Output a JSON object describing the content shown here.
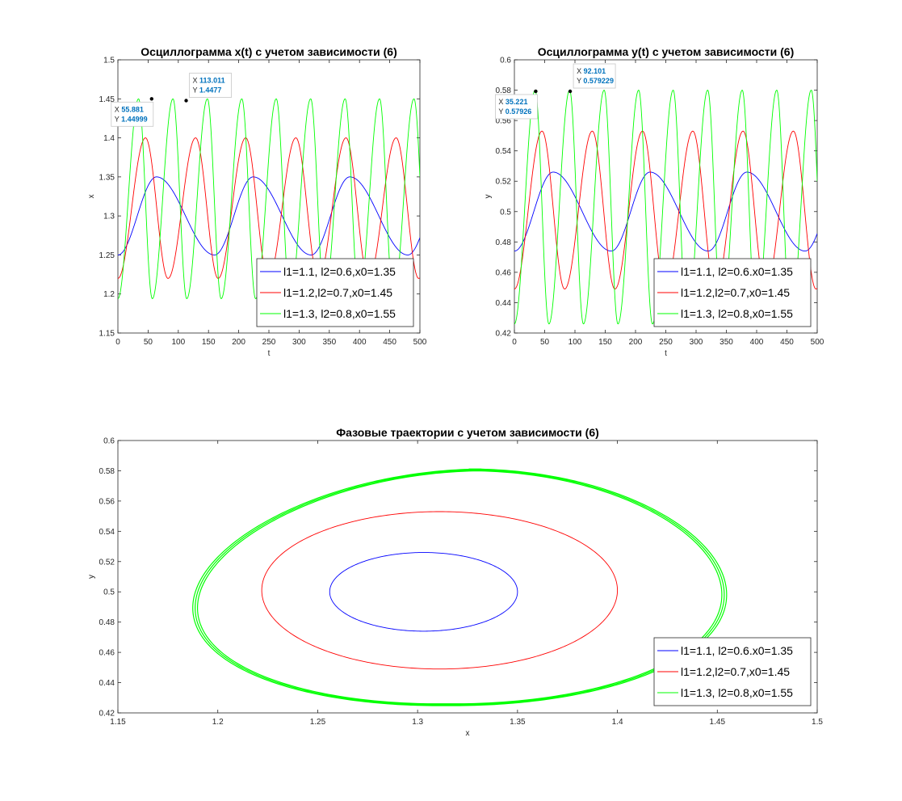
{
  "colors": {
    "blue": "#0000ff",
    "red": "#ff0000",
    "green": "#00ff00"
  },
  "chart_data": [
    {
      "type": "line",
      "title": "Осциллограмма x(t)  с учетом зависимости (6)",
      "xlabel": "t",
      "ylabel": "x",
      "xlim": [
        0,
        500
      ],
      "ylim": [
        1.15,
        1.5
      ],
      "xticks": [
        "0",
        "50",
        "100",
        "150",
        "200",
        "250",
        "300",
        "350",
        "400",
        "450",
        "500"
      ],
      "yticks": [
        "1.15",
        "1.2",
        "1.25",
        "1.3",
        "1.35",
        "1.4",
        "1.45",
        "1.5"
      ],
      "legend_position": "bottom-right",
      "series": [
        {
          "name": "l1=1.1, l2=0.6,x0=1.35",
          "color": "#0000ff",
          "wave": {
            "mean": 1.3,
            "amp": 0.05,
            "period": 160,
            "phase": 0,
            "skew": 0.4
          }
        },
        {
          "name": "l1=1.2,l2=0.7,x0=1.45",
          "color": "#ff0000",
          "wave": {
            "mean": 1.31,
            "amp": 0.09,
            "period": 83,
            "phase": 0,
            "skew": 0.55
          }
        },
        {
          "name": "l1=1.3, l2=0.8,x0=1.55",
          "color": "#00ff00",
          "wave": {
            "mean": 1.322,
            "amp": 0.128,
            "period": 57,
            "phase": 0,
            "skew": 0.6
          }
        }
      ],
      "datatips": [
        {
          "x_label": "X",
          "x_value": "55.881",
          "y_label": "Y",
          "y_value": "1.44999",
          "x": 55.881,
          "y": 1.44999
        },
        {
          "x_label": "X",
          "x_value": "113.011",
          "y_label": "Y",
          "y_value": "1.4477",
          "x": 113.011,
          "y": 1.4477
        }
      ]
    },
    {
      "type": "line",
      "title": "Осциллограмма y(t)  с учетом зависимости (6)",
      "xlabel": "t",
      "ylabel": "y",
      "xlim": [
        0,
        500
      ],
      "ylim": [
        0.42,
        0.6
      ],
      "xticks": [
        "0",
        "50",
        "100",
        "150",
        "200",
        "250",
        "300",
        "350",
        "400",
        "450",
        "500"
      ],
      "yticks": [
        "0.42",
        "0.44",
        "0.46",
        "0.48",
        "0.5",
        "0.52",
        "0.54",
        "0.56",
        "0.58",
        "0.6"
      ],
      "legend_position": "bottom-right",
      "series": [
        {
          "name": "l1=1.1, l2=0.6.x0=1.35",
          "color": "#0000ff",
          "wave": {
            "mean": 0.5,
            "amp": 0.026,
            "period": 160,
            "phase": 0,
            "skew": 0.4
          }
        },
        {
          "name": "l1=1.2,l2=0.7,x0=1.45",
          "color": "#ff0000",
          "wave": {
            "mean": 0.501,
            "amp": 0.052,
            "period": 83,
            "phase": 0,
            "skew": 0.55
          }
        },
        {
          "name": "l1=1.3, l2=0.8,x0=1.55",
          "color": "#00ff00",
          "wave": {
            "mean": 0.503,
            "amp": 0.077,
            "period": 57,
            "phase": 0,
            "skew": 0.6
          }
        }
      ],
      "datatips": [
        {
          "x_label": "X",
          "x_value": "35.221",
          "y_label": "Y",
          "y_value": "0.57926",
          "x": 35.221,
          "y": 0.57926
        },
        {
          "x_label": "X",
          "x_value": "92.101",
          "y_label": "Y",
          "y_value": "0.579229",
          "x": 92.101,
          "y": 0.579229
        }
      ]
    },
    {
      "type": "line",
      "title": "Фазовые траектории с учетом зависимости (6)",
      "xlabel": "x",
      "ylabel": "y",
      "xlim": [
        1.15,
        1.5
      ],
      "ylim": [
        0.42,
        0.6
      ],
      "xticks": [
        "1.15",
        "1.2",
        "1.25",
        "1.3",
        "1.35",
        "1.4",
        "1.45",
        "1.5"
      ],
      "yticks": [
        "0.42",
        "0.44",
        "0.46",
        "0.48",
        "0.5",
        "0.52",
        "0.54",
        "0.56",
        "0.58",
        "0.6"
      ],
      "legend_position": "bottom-right",
      "series": [
        {
          "name": "l1=1.1, l2=0.6.x0=1.35",
          "color": "#0000ff",
          "orbit": {
            "x_min": 1.256,
            "x_max": 1.35,
            "y_min": 0.474,
            "y_max": 0.526,
            "x_at_ymax": 1.3
          }
        },
        {
          "name": "l1=1.2,l2=0.7,x0=1.45",
          "color": "#ff0000",
          "orbit": {
            "x_min": 1.222,
            "x_max": 1.4,
            "y_min": 0.449,
            "y_max": 0.553,
            "x_at_ymax": 1.3
          }
        },
        {
          "name": "l1=1.3, l2=0.8,x0=1.55",
          "color": "#00ff00",
          "orbit": {
            "x_min": 1.192,
            "x_max": 1.452,
            "y_min": 0.426,
            "y_max": 0.58,
            "x_at_ymax": 1.3
          }
        }
      ]
    }
  ]
}
